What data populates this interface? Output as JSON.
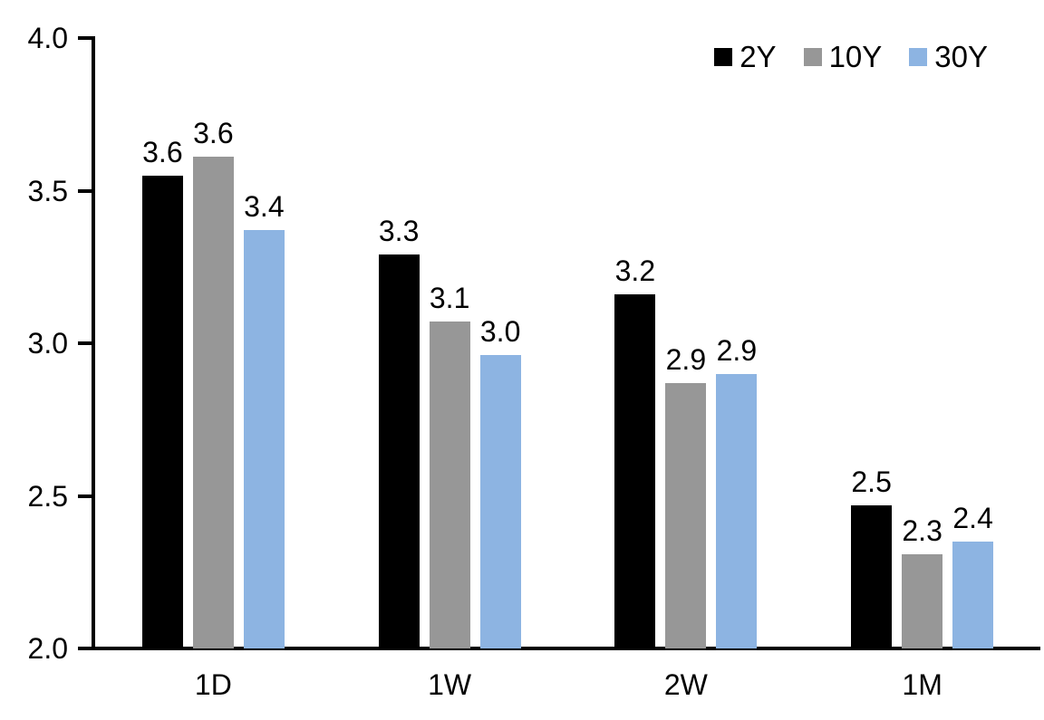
{
  "chart_data": {
    "type": "bar",
    "title": "",
    "categories": [
      "1D",
      "1W",
      "2W",
      "1M"
    ],
    "series": [
      {
        "name": "2Y",
        "color": "#000000",
        "values": [
          3.55,
          3.29,
          3.16,
          2.47
        ],
        "labels": [
          "3.6",
          "3.3",
          "3.2",
          "2.5"
        ]
      },
      {
        "name": "10Y",
        "color": "#979797",
        "values": [
          3.61,
          3.07,
          2.87,
          2.31
        ],
        "labels": [
          "3.6",
          "3.1",
          "2.9",
          "2.3"
        ]
      },
      {
        "name": "30Y",
        "color": "#8DB4E2",
        "values": [
          3.37,
          2.96,
          2.9,
          2.35
        ],
        "labels": [
          "3.4",
          "3.0",
          "2.9",
          "2.4"
        ]
      }
    ],
    "ylim": [
      2.0,
      4.0
    ],
    "yticks": [
      {
        "value": 4.0,
        "label": "4.0"
      },
      {
        "value": 3.5,
        "label": "3.5"
      },
      {
        "value": 3.0,
        "label": "3.0"
      },
      {
        "value": 2.5,
        "label": "2.5"
      },
      {
        "value": 2.0,
        "label": "2.0"
      }
    ],
    "xlabel": "",
    "ylabel": "",
    "grid": false,
    "legend_position": "top-right",
    "axis_color": "#000000",
    "background_color": "#FFFFFF"
  }
}
